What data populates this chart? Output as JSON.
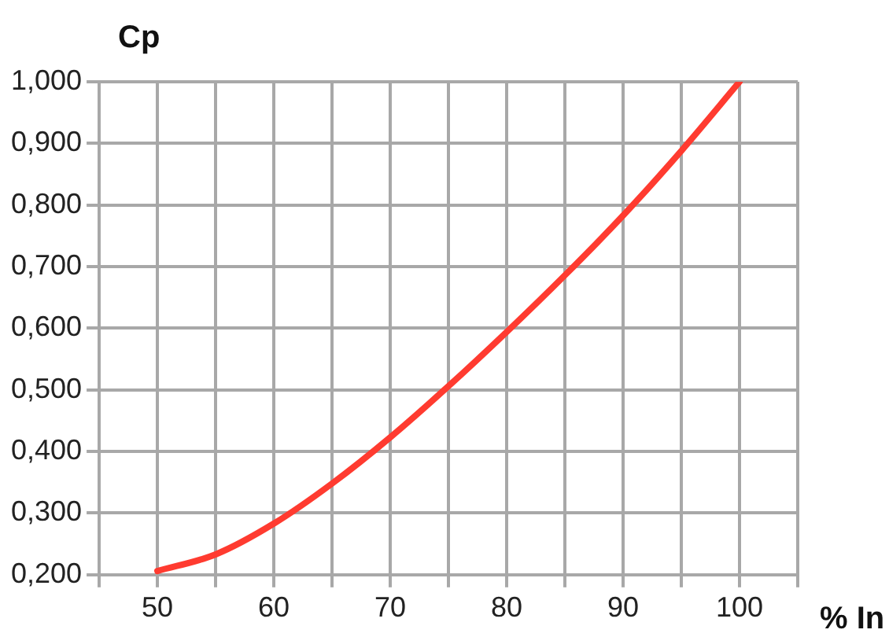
{
  "chart_data": {
    "type": "line",
    "xlabel": "% In",
    "ylabel": "Cp",
    "x": [
      50,
      55,
      60,
      65,
      70,
      75,
      80,
      85,
      90,
      95,
      100
    ],
    "series": [
      {
        "color": "#ff3b30",
        "values": [
          0.206,
          0.233,
          0.283,
          0.348,
          0.423,
          0.506,
          0.594,
          0.686,
          0.783,
          0.888,
          1.0
        ]
      }
    ],
    "xlim": [
      45,
      105
    ],
    "xticks": [
      {
        "value": 45,
        "label": null
      },
      50,
      {
        "value": 55,
        "label": null
      },
      60,
      {
        "value": 65,
        "label": null
      },
      70,
      {
        "value": 75,
        "label": null
      },
      80,
      {
        "value": 85,
        "label": null
      },
      90,
      {
        "value": 95,
        "label": null
      },
      100,
      {
        "value": 105,
        "label": null
      }
    ],
    "ylim": [
      0.2,
      1.0
    ],
    "yticks": [
      {
        "value": 0.2,
        "label": "0,200"
      },
      {
        "value": 0.3,
        "label": "0,300"
      },
      {
        "value": 0.4,
        "label": "0,400"
      },
      {
        "value": 0.5,
        "label": "0,500"
      },
      {
        "value": 0.6,
        "label": "0,600"
      },
      {
        "value": 0.7,
        "label": "0,700"
      },
      {
        "value": 0.8,
        "label": "0,800"
      },
      {
        "value": 0.9,
        "label": "0,900"
      },
      {
        "value": 1.0,
        "label": "1,000"
      }
    ],
    "grid": true,
    "legend": false,
    "marker": "none",
    "line_style": "solid"
  }
}
